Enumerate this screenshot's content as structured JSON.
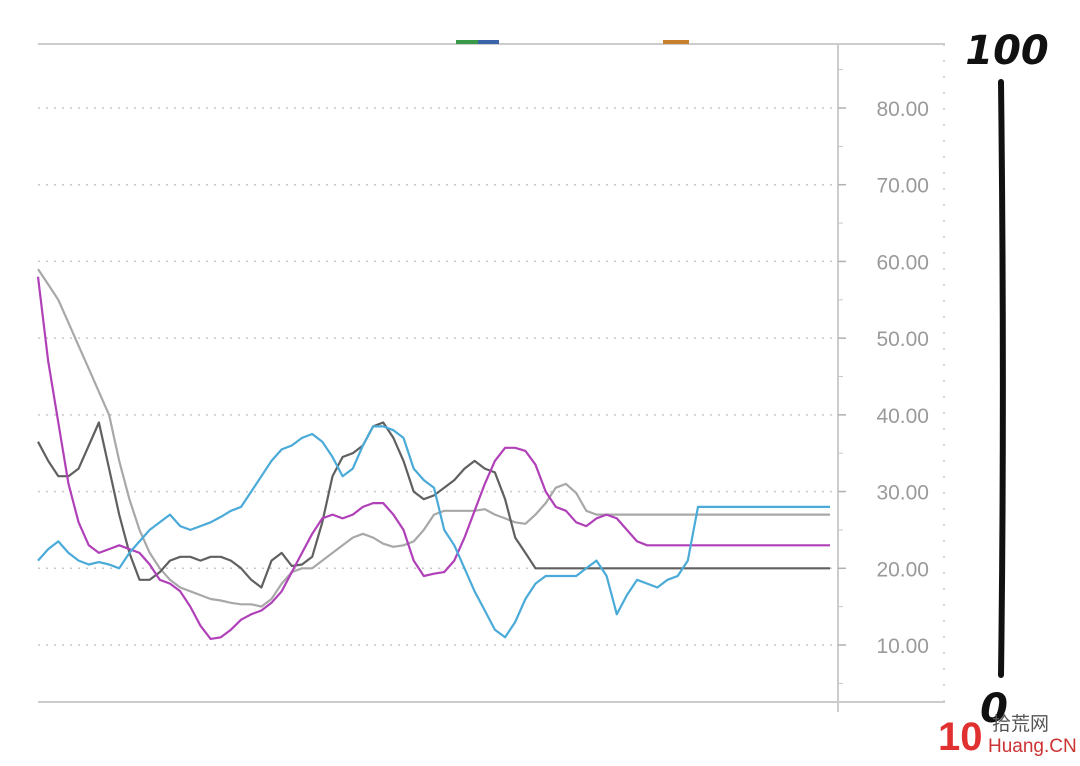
{
  "chart_data": {
    "type": "line",
    "title": "",
    "xlabel": "",
    "ylabel": "",
    "ylim": [
      0,
      86
    ],
    "yticks": [
      "80.00",
      "70.00",
      "60.00",
      "50.00",
      "40.00",
      "30.00",
      "20.00",
      "10.00"
    ],
    "ytick_values": [
      80,
      70,
      60,
      50,
      40,
      30,
      20,
      10
    ],
    "grid": true,
    "legend_colors": [
      "#3a9a4a",
      "#c9802c"
    ],
    "x": [
      0,
      1,
      2,
      3,
      4,
      5,
      6,
      7,
      8,
      9,
      10,
      11,
      12,
      13,
      14,
      15,
      16,
      17,
      18,
      19,
      20,
      21,
      22,
      23,
      24,
      25,
      26,
      27,
      28,
      29,
      30,
      31,
      32,
      33,
      34,
      35,
      36,
      37,
      38,
      39,
      40,
      41,
      42,
      43,
      44,
      45,
      46,
      47,
      48,
      49,
      50,
      51,
      52,
      53,
      54,
      55,
      56,
      57,
      58,
      59,
      60,
      61,
      62,
      63,
      64,
      65,
      66,
      67,
      68,
      69,
      70,
      71,
      72,
      73,
      74,
      75,
      76,
      77,
      78
    ],
    "series": [
      {
        "color": "#4aaad8",
        "values": [
          21,
          22.5,
          23.5,
          22,
          21,
          20.5,
          20.8,
          20.5,
          20,
          22,
          23.5,
          25,
          26,
          27,
          25.5,
          25,
          25.5,
          26,
          26.7,
          27.5,
          28,
          30,
          32,
          34,
          35.5,
          36,
          37,
          37.5,
          36.5,
          34.5,
          32,
          33,
          36,
          38.5,
          38.5,
          38,
          37,
          33,
          31.5,
          30.5,
          25,
          23,
          20,
          17,
          14.5,
          12,
          11,
          13,
          16,
          18,
          19,
          19,
          19,
          19,
          20,
          21,
          19,
          14,
          16.5,
          18.5,
          18,
          17.5,
          18.5,
          19,
          21,
          28,
          28,
          28,
          28,
          28,
          28,
          28,
          28,
          28,
          28,
          28,
          28,
          28,
          28
        ]
      },
      {
        "color": "#b040b8",
        "values": [
          58,
          47,
          39,
          31,
          26,
          23,
          22,
          22.5,
          23,
          22.5,
          22,
          20.5,
          18.5,
          18,
          17,
          15,
          12.5,
          10.8,
          11,
          12,
          13.3,
          14,
          14.5,
          15.5,
          17,
          19.5,
          22,
          24.5,
          26.5,
          27,
          26.5,
          27,
          28,
          28.5,
          28.5,
          27,
          25,
          21,
          19,
          19.3,
          19.5,
          21,
          24,
          27.5,
          31,
          34,
          35.7,
          35.7,
          35.3,
          33.5,
          30,
          28,
          27.5,
          26,
          25.5,
          26.5,
          27,
          26.5,
          25,
          23.5,
          23,
          23,
          23,
          23,
          23,
          23,
          23,
          23,
          23,
          23,
          23,
          23,
          23,
          23,
          23,
          23,
          23,
          23,
          23
        ]
      },
      {
        "color": "#606060",
        "values": [
          36.5,
          34,
          32,
          32,
          33,
          36,
          39,
          33,
          27,
          22,
          18.5,
          18.5,
          19.5,
          21,
          21.5,
          21.5,
          21,
          21.5,
          21.5,
          21,
          20,
          18.5,
          17.5,
          21,
          22,
          20.3,
          20.5,
          21.5,
          26,
          32,
          34.5,
          35,
          36,
          38.5,
          39,
          37,
          34,
          30,
          29,
          29.5,
          30.5,
          31.5,
          33,
          34,
          33,
          32.5,
          29,
          24,
          22,
          20,
          20,
          20,
          20,
          20,
          20,
          20,
          20,
          20,
          20,
          20,
          20,
          20,
          20,
          20,
          20,
          20,
          20,
          20,
          20,
          20,
          20,
          20,
          20,
          20,
          20,
          20,
          20,
          20,
          20
        ]
      },
      {
        "color": "#a8a8a8",
        "values": [
          59,
          57,
          55,
          52,
          49,
          46,
          43,
          40,
          34,
          29,
          25,
          22,
          20,
          18.5,
          17.5,
          17,
          16.5,
          16,
          15.8,
          15.5,
          15.3,
          15.3,
          15,
          16,
          18,
          19.5,
          20,
          20,
          21,
          22,
          23,
          24,
          24.5,
          24,
          23.2,
          22.8,
          23,
          23.5,
          25,
          27,
          27.5,
          27.5,
          27.5,
          27.5,
          27.7,
          27,
          26.5,
          26,
          25.8,
          27,
          28.5,
          30.5,
          31,
          29.8,
          27.5,
          27,
          27,
          27,
          27,
          27,
          27,
          27,
          27,
          27,
          27,
          27,
          27,
          27,
          27,
          27,
          27,
          27,
          27,
          27,
          27,
          27,
          27,
          27,
          27
        ]
      }
    ]
  },
  "scale_bar": {
    "top_label": "100",
    "bottom_label": "0"
  },
  "watermark": {
    "logo_number": "10",
    "site_cn": "拾荒网",
    "site_en": "Huang.CN"
  }
}
